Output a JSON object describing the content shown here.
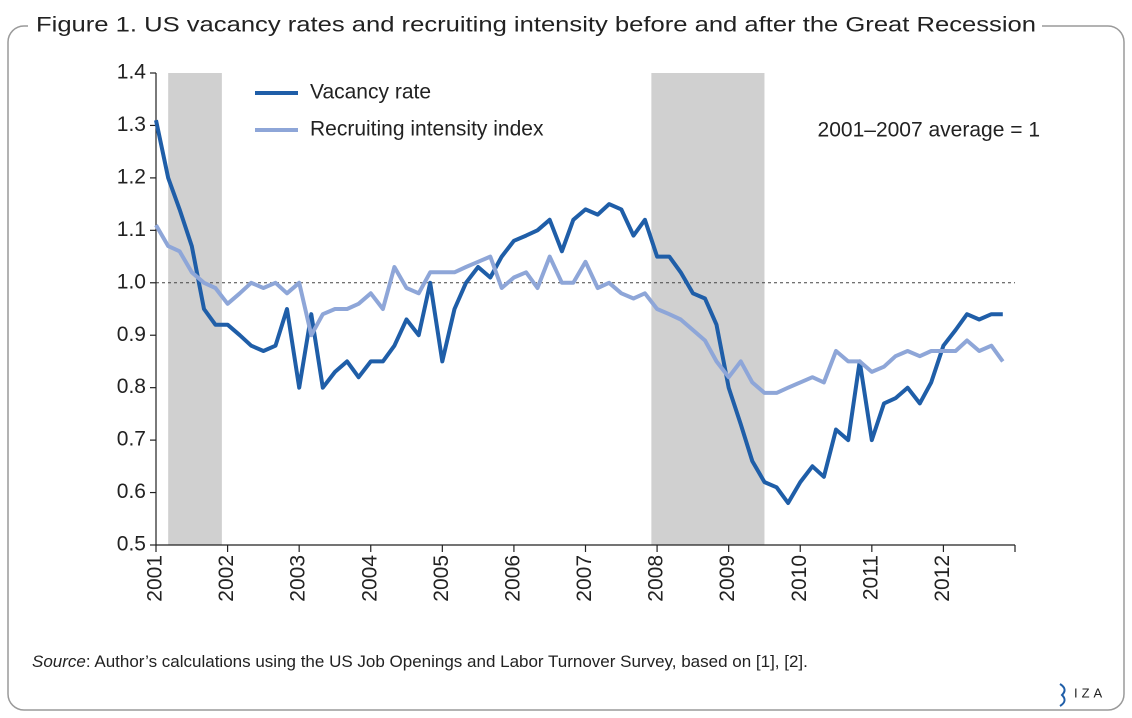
{
  "chart_data": {
    "type": "line",
    "title": "Figure 1. US vacancy rates and recruiting intensity before and after the Great Recession",
    "annotation": "2001–2007 average = 1",
    "source_label": "Source",
    "source_text": ": Author’s calculations using the US Job Openings and Labor Turnover Survey, based on [1], [2].",
    "logo": "IZA",
    "x": [
      2001,
      2001.17,
      2001.33,
      2001.5,
      2001.67,
      2001.83,
      2002,
      2002.17,
      2002.33,
      2002.5,
      2002.67,
      2002.83,
      2003,
      2003.17,
      2003.33,
      2003.5,
      2003.67,
      2003.83,
      2004,
      2004.17,
      2004.33,
      2004.5,
      2004.67,
      2004.83,
      2005,
      2005.17,
      2005.33,
      2005.5,
      2005.67,
      2005.83,
      2006,
      2006.17,
      2006.33,
      2006.5,
      2006.67,
      2006.83,
      2007,
      2007.17,
      2007.33,
      2007.5,
      2007.67,
      2007.83,
      2008,
      2008.17,
      2008.33,
      2008.5,
      2008.67,
      2008.83,
      2009,
      2009.17,
      2009.33,
      2009.5,
      2009.67,
      2009.83,
      2010,
      2010.17,
      2010.33,
      2010.5,
      2010.67,
      2010.83,
      2011,
      2011.17,
      2011.33,
      2011.5,
      2011.67,
      2011.83,
      2012,
      2012.17,
      2012.33,
      2012.5,
      2012.67,
      2012.83
    ],
    "series": [
      {
        "name": "Vacancy rate",
        "color": "#1f5ea8",
        "values": [
          1.31,
          1.2,
          1.14,
          1.07,
          0.95,
          0.92,
          0.92,
          0.9,
          0.88,
          0.87,
          0.88,
          0.95,
          0.8,
          0.94,
          0.8,
          0.83,
          0.85,
          0.82,
          0.85,
          0.85,
          0.88,
          0.93,
          0.9,
          1.0,
          0.85,
          0.95,
          1.0,
          1.03,
          1.01,
          1.05,
          1.08,
          1.09,
          1.1,
          1.12,
          1.06,
          1.12,
          1.14,
          1.13,
          1.15,
          1.14,
          1.09,
          1.12,
          1.05,
          1.05,
          1.02,
          0.98,
          0.97,
          0.92,
          0.8,
          0.73,
          0.66,
          0.62,
          0.61,
          0.58,
          0.62,
          0.65,
          0.63,
          0.72,
          0.7,
          0.85,
          0.7,
          0.77,
          0.78,
          0.8,
          0.77,
          0.81,
          0.88,
          0.91,
          0.94,
          0.93,
          0.94,
          0.94
        ]
      },
      {
        "name": "Recruiting intensity index",
        "color": "#8ea6d8",
        "values": [
          1.11,
          1.07,
          1.06,
          1.02,
          1.0,
          0.99,
          0.96,
          0.98,
          1.0,
          0.99,
          1.0,
          0.98,
          1.0,
          0.9,
          0.94,
          0.95,
          0.95,
          0.96,
          0.98,
          0.95,
          1.03,
          0.99,
          0.98,
          1.02,
          1.02,
          1.02,
          1.03,
          1.04,
          1.05,
          0.99,
          1.01,
          1.02,
          0.99,
          1.05,
          1.0,
          1.0,
          1.04,
          0.99,
          1.0,
          0.98,
          0.97,
          0.98,
          0.95,
          0.94,
          0.93,
          0.91,
          0.89,
          0.85,
          0.82,
          0.85,
          0.81,
          0.79,
          0.79,
          0.8,
          0.81,
          0.82,
          0.81,
          0.87,
          0.85,
          0.85,
          0.83,
          0.84,
          0.86,
          0.87,
          0.86,
          0.87,
          0.87,
          0.87,
          0.89,
          0.87,
          0.88,
          0.85
        ]
      }
    ],
    "xlim": [
      2001,
      2013
    ],
    "xticks": [
      2001,
      2002,
      2003,
      2004,
      2005,
      2006,
      2007,
      2008,
      2009,
      2010,
      2011,
      2012
    ],
    "ylim": [
      0.5,
      1.4
    ],
    "yticks": [
      0.5,
      0.6,
      0.7,
      0.8,
      0.9,
      {
        "value": 1,
        "label": "1.0"
      },
      1.1,
      1.2,
      1.3,
      1.4
    ],
    "reference_line": 1,
    "shaded_periods": [
      [
        2001.17,
        2001.92
      ],
      [
        2007.92,
        2009.5
      ]
    ],
    "shade_color": "#d0d0d0"
  }
}
